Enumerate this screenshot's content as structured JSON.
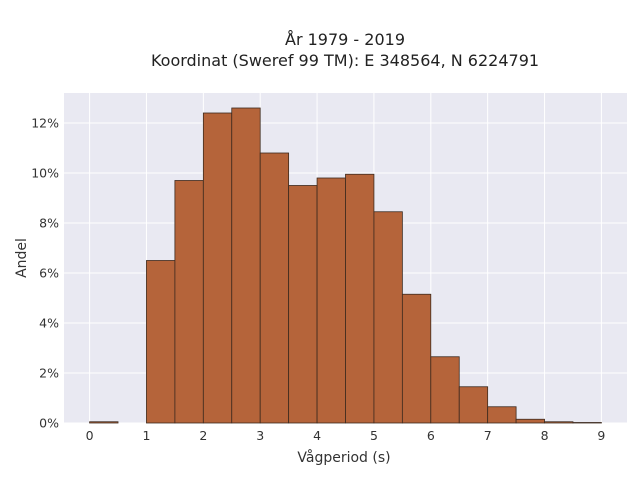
{
  "chart_data": {
    "type": "bar",
    "title_lines": [
      "År 1979 - 2019",
      "Koordinat (Sweref 99 TM): E 348564, N 6224791"
    ],
    "xlabel": "Vågperiod (s)",
    "ylabel": "Andel",
    "bin_width": 0.5,
    "bins": [
      {
        "x0": 0.0,
        "value": 0.05
      },
      {
        "x0": 0.5,
        "value": 0.0
      },
      {
        "x0": 1.0,
        "value": 6.5
      },
      {
        "x0": 1.5,
        "value": 9.7
      },
      {
        "x0": 2.0,
        "value": 12.4
      },
      {
        "x0": 2.5,
        "value": 12.6
      },
      {
        "x0": 3.0,
        "value": 10.8
      },
      {
        "x0": 3.5,
        "value": 9.5
      },
      {
        "x0": 4.0,
        "value": 9.8
      },
      {
        "x0": 4.5,
        "value": 9.95
      },
      {
        "x0": 5.0,
        "value": 8.45
      },
      {
        "x0": 5.5,
        "value": 5.15
      },
      {
        "x0": 6.0,
        "value": 2.65
      },
      {
        "x0": 6.5,
        "value": 1.45
      },
      {
        "x0": 7.0,
        "value": 0.65
      },
      {
        "x0": 7.5,
        "value": 0.15
      },
      {
        "x0": 8.0,
        "value": 0.05
      },
      {
        "x0": 8.5,
        "value": 0.02
      }
    ],
    "xlim": [
      -0.45,
      9.45
    ],
    "ylim": [
      0,
      13.2
    ],
    "xticks": [
      0,
      1,
      2,
      3,
      4,
      5,
      6,
      7,
      8,
      9
    ],
    "yticks": [
      0,
      2,
      4,
      6,
      8,
      10,
      12
    ],
    "ytick_labels": [
      "0%",
      "2%",
      "4%",
      "6%",
      "8%",
      "10%",
      "12%"
    ],
    "grid": true,
    "bar_color": "#b5643a",
    "bar_edge_color": "#3d2a1e",
    "plot_background": "#e9e9f2"
  }
}
